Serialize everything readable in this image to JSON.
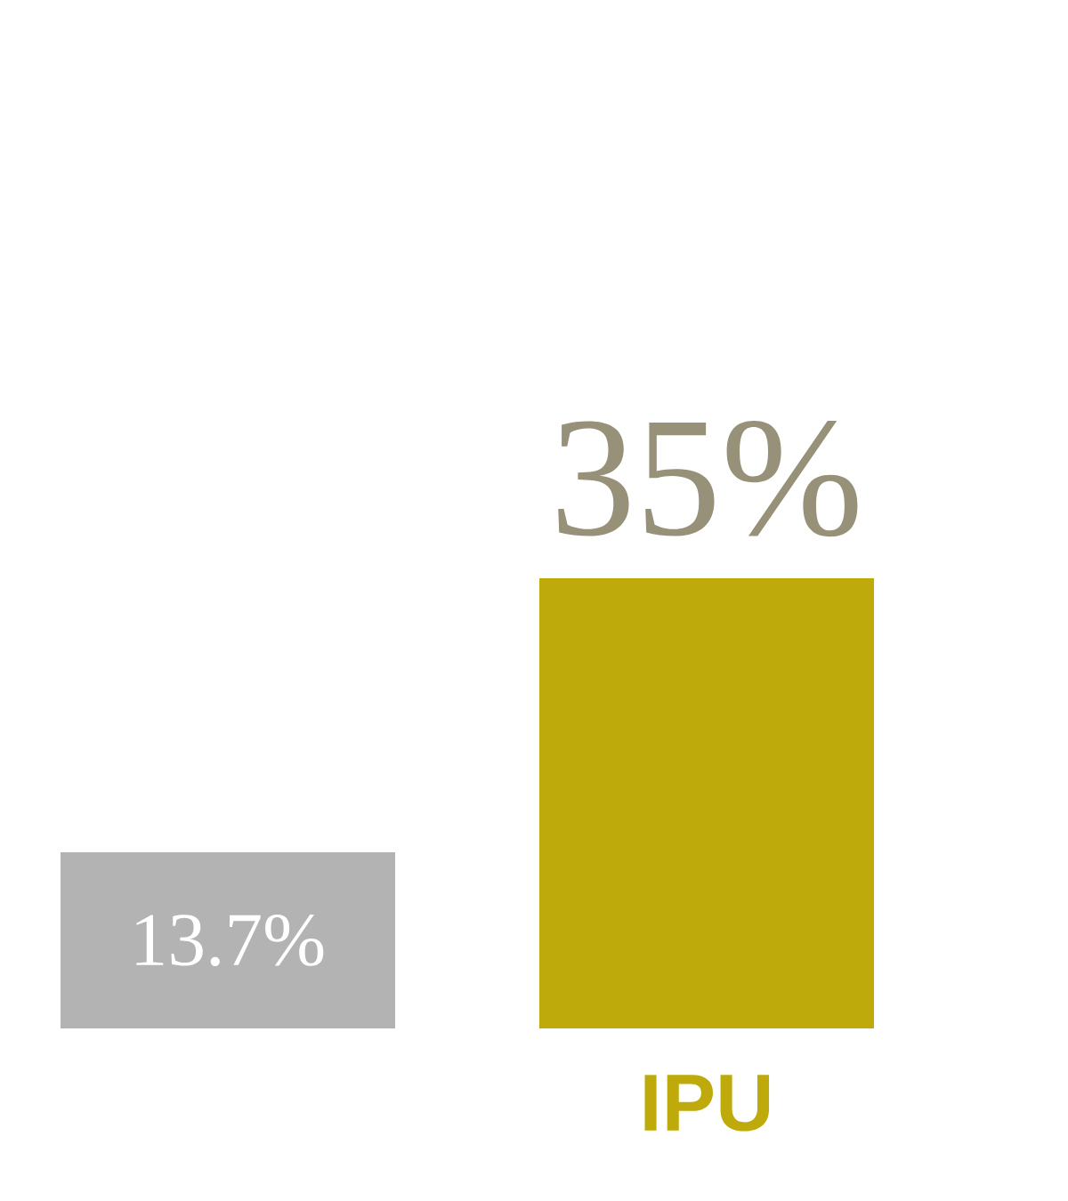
{
  "chart_data": {
    "type": "bar",
    "categories": [
      null,
      "IPU"
    ],
    "values": [
      13.7,
      35
    ],
    "colors": [
      "#b3b3b3",
      "#bfaa0c"
    ],
    "value_labels": [
      "13.7%",
      "35%"
    ]
  }
}
